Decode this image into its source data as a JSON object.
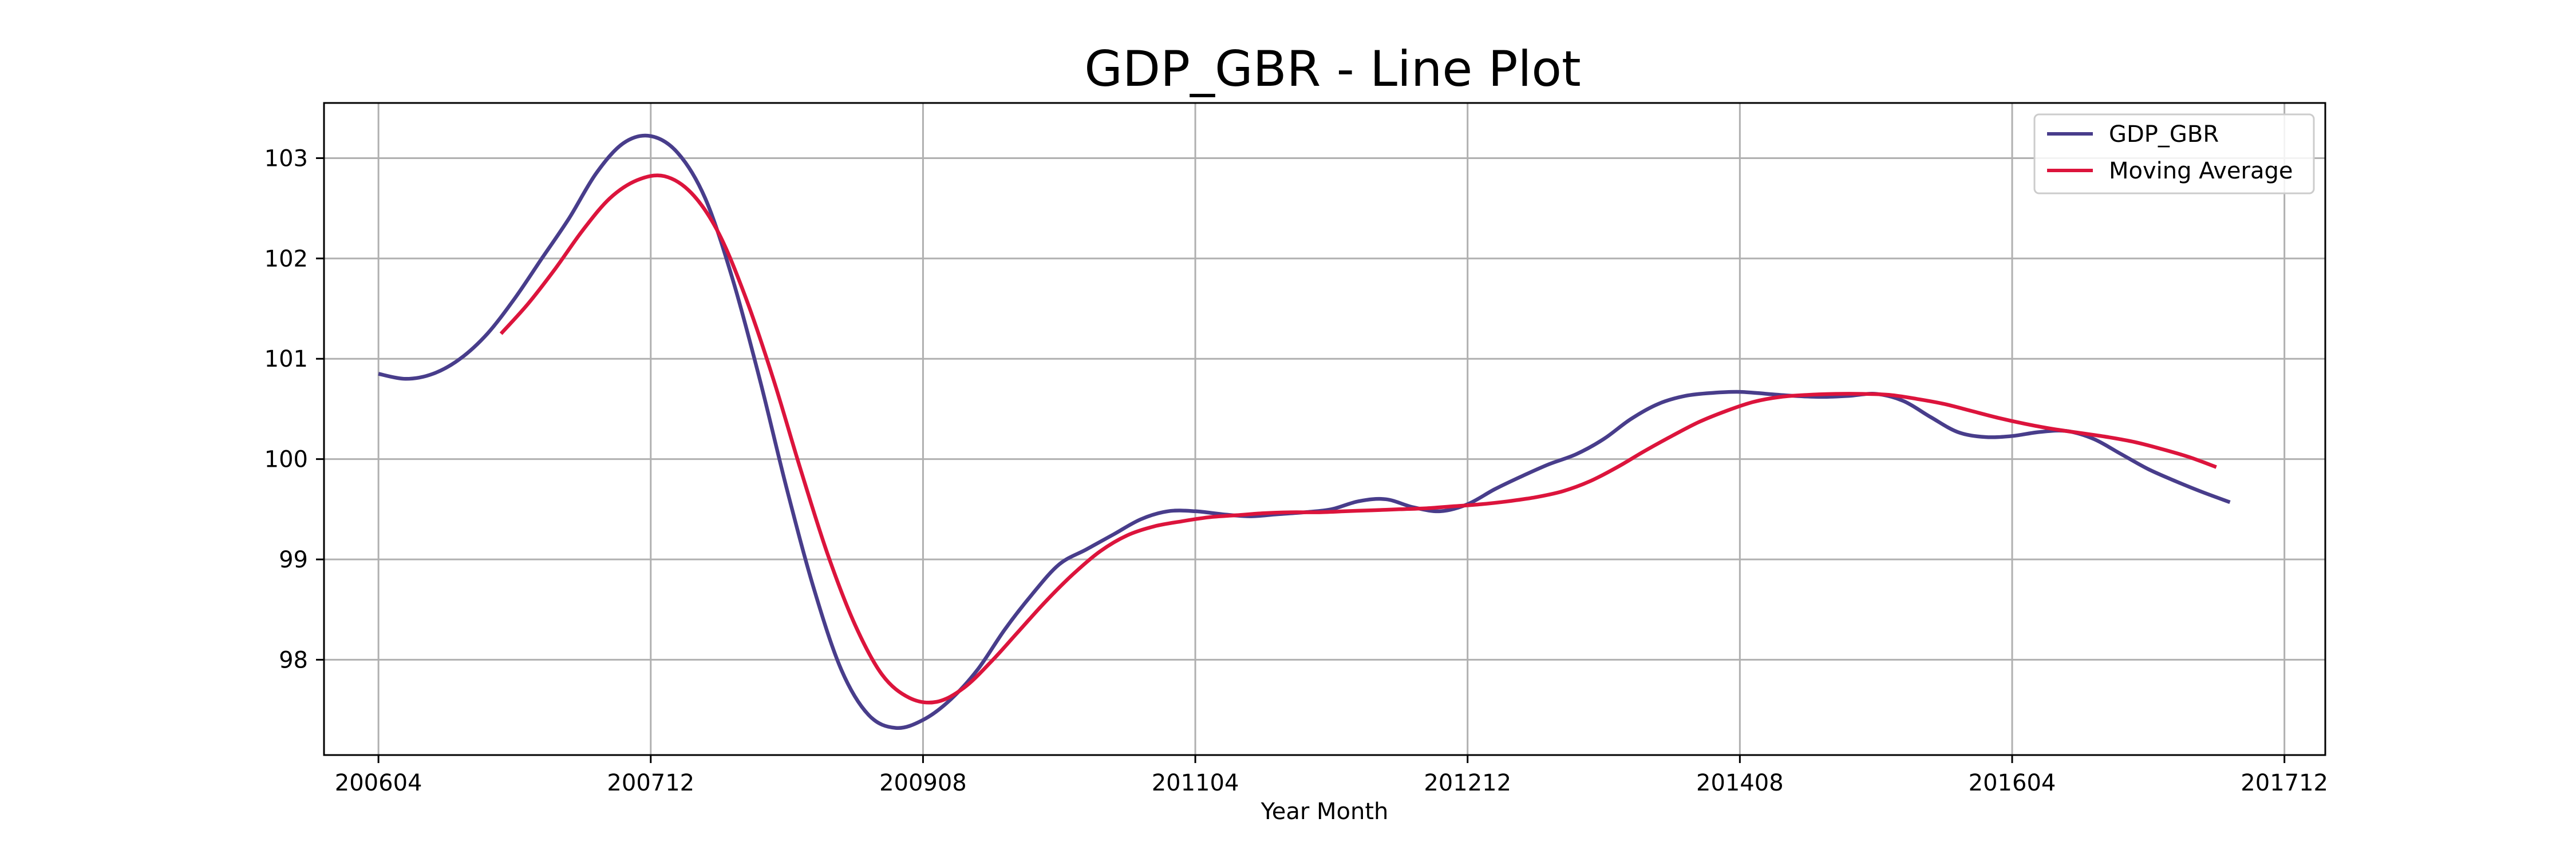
{
  "chart_data": {
    "type": "line",
    "title": "GDP_GBR - Line Plot",
    "xlabel": "Year Month",
    "ylabel": "",
    "x_ticks": [
      "200604",
      "200712",
      "200908",
      "201104",
      "201212",
      "201408",
      "201604",
      "201712"
    ],
    "y_ticks": [
      98,
      99,
      100,
      101,
      102,
      103
    ],
    "xlim": [
      "2005-12",
      "2018-03"
    ],
    "ylim": [
      97.05,
      103.55
    ],
    "grid": true,
    "legend_position": "top-right",
    "series": [
      {
        "name": "GDP_GBR",
        "color": "#483d8b",
        "points": [
          [
            "2006-04",
            100.85
          ],
          [
            "2006-06",
            100.8
          ],
          [
            "2006-08",
            100.85
          ],
          [
            "2006-10",
            101.0
          ],
          [
            "2006-12",
            101.25
          ],
          [
            "2007-02",
            101.6
          ],
          [
            "2007-04",
            102.0
          ],
          [
            "2007-06",
            102.4
          ],
          [
            "2007-08",
            102.85
          ],
          [
            "2007-10",
            103.15
          ],
          [
            "2007-12",
            103.22
          ],
          [
            "2008-02",
            103.05
          ],
          [
            "2008-04",
            102.6
          ],
          [
            "2008-06",
            101.8
          ],
          [
            "2008-08",
            100.8
          ],
          [
            "2008-10",
            99.7
          ],
          [
            "2008-12",
            98.7
          ],
          [
            "2009-02",
            97.9
          ],
          [
            "2009-04",
            97.45
          ],
          [
            "2009-06",
            97.32
          ],
          [
            "2009-08",
            97.4
          ],
          [
            "2009-10",
            97.6
          ],
          [
            "2009-12",
            97.9
          ],
          [
            "2010-02",
            98.3
          ],
          [
            "2010-04",
            98.65
          ],
          [
            "2010-06",
            98.95
          ],
          [
            "2010-08",
            99.1
          ],
          [
            "2010-10",
            99.25
          ],
          [
            "2010-12",
            99.4
          ],
          [
            "2011-02",
            99.48
          ],
          [
            "2011-04",
            99.48
          ],
          [
            "2011-06",
            99.45
          ],
          [
            "2011-08",
            99.43
          ],
          [
            "2011-10",
            99.45
          ],
          [
            "2011-12",
            99.47
          ],
          [
            "2012-02",
            99.5
          ],
          [
            "2012-04",
            99.58
          ],
          [
            "2012-06",
            99.6
          ],
          [
            "2012-08",
            99.52
          ],
          [
            "2012-10",
            99.48
          ],
          [
            "2012-12",
            99.55
          ],
          [
            "2013-02",
            99.7
          ],
          [
            "2013-04",
            99.83
          ],
          [
            "2013-06",
            99.95
          ],
          [
            "2013-08",
            100.05
          ],
          [
            "2013-10",
            100.2
          ],
          [
            "2013-12",
            100.4
          ],
          [
            "2014-02",
            100.55
          ],
          [
            "2014-04",
            100.63
          ],
          [
            "2014-06",
            100.66
          ],
          [
            "2014-08",
            100.67
          ],
          [
            "2014-10",
            100.65
          ],
          [
            "2014-12",
            100.63
          ],
          [
            "2015-02",
            100.62
          ],
          [
            "2015-04",
            100.63
          ],
          [
            "2015-06",
            100.65
          ],
          [
            "2015-08",
            100.58
          ],
          [
            "2015-10",
            100.42
          ],
          [
            "2015-12",
            100.27
          ],
          [
            "2016-02",
            100.22
          ],
          [
            "2016-04",
            100.23
          ],
          [
            "2016-06",
            100.27
          ],
          [
            "2016-08",
            100.28
          ],
          [
            "2016-10",
            100.2
          ],
          [
            "2016-12",
            100.05
          ],
          [
            "2017-02",
            99.9
          ],
          [
            "2017-04",
            99.78
          ],
          [
            "2017-06",
            99.67
          ],
          [
            "2017-08",
            99.57
          ]
        ]
      },
      {
        "name": "Moving Average",
        "color": "#dc143c",
        "points": [
          [
            "2007-01",
            101.25
          ],
          [
            "2007-03",
            101.55
          ],
          [
            "2007-05",
            101.9
          ],
          [
            "2007-07",
            102.28
          ],
          [
            "2007-09",
            102.6
          ],
          [
            "2007-11",
            102.78
          ],
          [
            "2008-01",
            102.82
          ],
          [
            "2008-03",
            102.65
          ],
          [
            "2008-05",
            102.25
          ],
          [
            "2008-07",
            101.6
          ],
          [
            "2008-09",
            100.8
          ],
          [
            "2008-11",
            99.9
          ],
          [
            "2009-01",
            99.05
          ],
          [
            "2009-03",
            98.35
          ],
          [
            "2009-05",
            97.85
          ],
          [
            "2009-07",
            97.62
          ],
          [
            "2009-09",
            97.58
          ],
          [
            "2009-11",
            97.72
          ],
          [
            "2010-01",
            97.98
          ],
          [
            "2010-03",
            98.28
          ],
          [
            "2010-05",
            98.58
          ],
          [
            "2010-07",
            98.85
          ],
          [
            "2010-09",
            99.08
          ],
          [
            "2010-11",
            99.24
          ],
          [
            "2011-01",
            99.33
          ],
          [
            "2011-03",
            99.38
          ],
          [
            "2011-05",
            99.42
          ],
          [
            "2011-07",
            99.44
          ],
          [
            "2011-09",
            99.46
          ],
          [
            "2011-11",
            99.47
          ],
          [
            "2012-01",
            99.47
          ],
          [
            "2012-03",
            99.48
          ],
          [
            "2012-05",
            99.49
          ],
          [
            "2012-07",
            99.5
          ],
          [
            "2012-09",
            99.51
          ],
          [
            "2012-11",
            99.53
          ],
          [
            "2013-01",
            99.55
          ],
          [
            "2013-03",
            99.58
          ],
          [
            "2013-05",
            99.62
          ],
          [
            "2013-07",
            99.68
          ],
          [
            "2013-09",
            99.78
          ],
          [
            "2013-11",
            99.92
          ],
          [
            "2014-01",
            100.08
          ],
          [
            "2014-03",
            100.23
          ],
          [
            "2014-05",
            100.37
          ],
          [
            "2014-07",
            100.48
          ],
          [
            "2014-09",
            100.57
          ],
          [
            "2014-11",
            100.62
          ],
          [
            "2015-01",
            100.64
          ],
          [
            "2015-03",
            100.65
          ],
          [
            "2015-05",
            100.65
          ],
          [
            "2015-07",
            100.64
          ],
          [
            "2015-09",
            100.6
          ],
          [
            "2015-11",
            100.55
          ],
          [
            "2016-01",
            100.48
          ],
          [
            "2016-03",
            100.41
          ],
          [
            "2016-05",
            100.35
          ],
          [
            "2016-07",
            100.3
          ],
          [
            "2016-09",
            100.26
          ],
          [
            "2016-11",
            100.22
          ],
          [
            "2017-01",
            100.17
          ],
          [
            "2017-03",
            100.1
          ],
          [
            "2017-05",
            100.02
          ],
          [
            "2017-07",
            99.92
          ]
        ]
      }
    ]
  }
}
